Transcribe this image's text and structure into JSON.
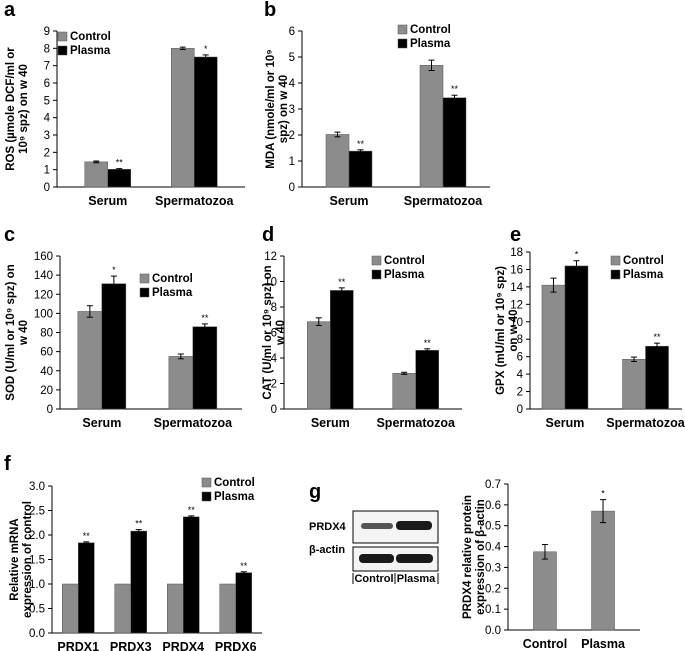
{
  "figure": {
    "legend_labels": {
      "control": "Control",
      "plasma": "Plasma"
    },
    "colors": {
      "control": "#8c8c8c",
      "plasma": "#000000",
      "axis": "#000000",
      "band": "#1a1a1a",
      "blot_bg": "#f2f2f2"
    }
  },
  "chart_data": [
    {
      "id": "a",
      "letter": "a",
      "type": "bar",
      "title": "",
      "ylabel_lines": [
        "ROS (µmole DCF/ml or",
        "10⁹ spz) on w 40"
      ],
      "categories": [
        "Serum",
        "Spermatozoa"
      ],
      "ylim": [
        0,
        9
      ],
      "ystep": 1,
      "tick_decimals": 0,
      "series": [
        {
          "name": "Control",
          "values": [
            1.45,
            8.0
          ],
          "errors": [
            0.05,
            0.07
          ],
          "sig": [
            "",
            ""
          ]
        },
        {
          "name": "Plasma",
          "values": [
            1.02,
            7.5
          ],
          "errors": [
            0.04,
            0.12
          ],
          "sig": [
            "**",
            "*"
          ]
        }
      ]
    },
    {
      "id": "b",
      "letter": "b",
      "type": "bar",
      "title": "",
      "ylabel_lines": [
        "MDA (nmole/ml or 10⁹",
        "spz) on w 40"
      ],
      "categories": [
        "Serum",
        "Spermatozoa"
      ],
      "ylim": [
        0,
        6
      ],
      "ystep": 1,
      "tick_decimals": 0,
      "series": [
        {
          "name": "Control",
          "values": [
            2.02,
            4.68
          ],
          "errors": [
            0.09,
            0.2
          ],
          "sig": [
            "",
            ""
          ]
        },
        {
          "name": "Plasma",
          "values": [
            1.38,
            3.43
          ],
          "errors": [
            0.05,
            0.1
          ],
          "sig": [
            "**",
            "**"
          ]
        }
      ]
    },
    {
      "id": "c",
      "letter": "c",
      "type": "bar",
      "title": "",
      "ylabel_lines": [
        "SOD (U/ml or 10⁹ spz) on",
        "w 40"
      ],
      "categories": [
        "Serum",
        "Spermatozoa"
      ],
      "ylim": [
        0,
        160
      ],
      "ystep": 20,
      "tick_decimals": 0,
      "series": [
        {
          "name": "Control",
          "values": [
            102,
            55
          ],
          "errors": [
            6,
            2.5
          ],
          "sig": [
            "",
            ""
          ]
        },
        {
          "name": "Plasma",
          "values": [
            131,
            86
          ],
          "errors": [
            8,
            3
          ],
          "sig": [
            "*",
            "**"
          ]
        }
      ]
    },
    {
      "id": "d",
      "letter": "d",
      "type": "bar",
      "title": "",
      "ylabel_lines": [
        "CAT (U/ml or 10⁹ spz) on",
        "w 40"
      ],
      "categories": [
        "Serum",
        "Spermatozoa"
      ],
      "ylim": [
        0,
        12
      ],
      "ystep": 2,
      "tick_decimals": 0,
      "series": [
        {
          "name": "Control",
          "values": [
            6.85,
            2.8
          ],
          "errors": [
            0.3,
            0.08
          ],
          "sig": [
            "",
            ""
          ]
        },
        {
          "name": "Plasma",
          "values": [
            9.3,
            4.6
          ],
          "errors": [
            0.2,
            0.12
          ],
          "sig": [
            "**",
            "**"
          ]
        }
      ]
    },
    {
      "id": "e",
      "letter": "e",
      "type": "bar",
      "title": "",
      "ylabel_lines": [
        "GPX (mU/ml or 10⁹ spz)",
        "on w 40"
      ],
      "categories": [
        "Serum",
        "Spermatozoa"
      ],
      "ylim": [
        0,
        18
      ],
      "ystep": 2,
      "tick_decimals": 0,
      "series": [
        {
          "name": "Control",
          "values": [
            14.2,
            5.7
          ],
          "errors": [
            0.8,
            0.25
          ],
          "sig": [
            "",
            ""
          ]
        },
        {
          "name": "Plasma",
          "values": [
            16.4,
            7.2
          ],
          "errors": [
            0.6,
            0.35
          ],
          "sig": [
            "*",
            "**"
          ]
        }
      ]
    },
    {
      "id": "f",
      "letter": "f",
      "type": "bar",
      "title": "",
      "ylabel_lines": [
        "Relative mRNA",
        "expression of control"
      ],
      "categories": [
        "PRDX1",
        "PRDX3",
        "PRDX4",
        "PRDX6"
      ],
      "ylim": [
        0,
        3
      ],
      "ystep": 0.5,
      "tick_decimals": 1,
      "series": [
        {
          "name": "Control",
          "values": [
            1.0,
            1.0,
            1.0,
            1.0
          ],
          "errors": [
            0,
            0,
            0,
            0
          ],
          "sig": [
            "",
            "",
            "",
            ""
          ]
        },
        {
          "name": "Plasma",
          "values": [
            1.84,
            2.08,
            2.37,
            1.23
          ],
          "errors": [
            0.02,
            0.03,
            0.02,
            0.02
          ],
          "sig": [
            "**",
            "**",
            "**",
            "**"
          ]
        }
      ]
    },
    {
      "id": "g",
      "letter": "",
      "type": "bar",
      "title": "",
      "ylabel_lines": [
        "PRDX4 relative protein",
        "expression of β-actin"
      ],
      "categories": [
        "Control",
        "Plasma"
      ],
      "ylim": [
        0,
        0.7
      ],
      "ystep": 0.1,
      "tick_decimals": 1,
      "single": true,
      "series": [
        {
          "name": "PRDX4",
          "values": [
            0.375,
            0.57
          ],
          "errors": [
            0.035,
            0.055
          ],
          "sig": [
            "",
            "*"
          ]
        }
      ]
    }
  ],
  "blot": {
    "letter": "g",
    "rows": [
      "PRDX4",
      "β-actin"
    ],
    "lanes": [
      "Control",
      "Plasma"
    ]
  }
}
